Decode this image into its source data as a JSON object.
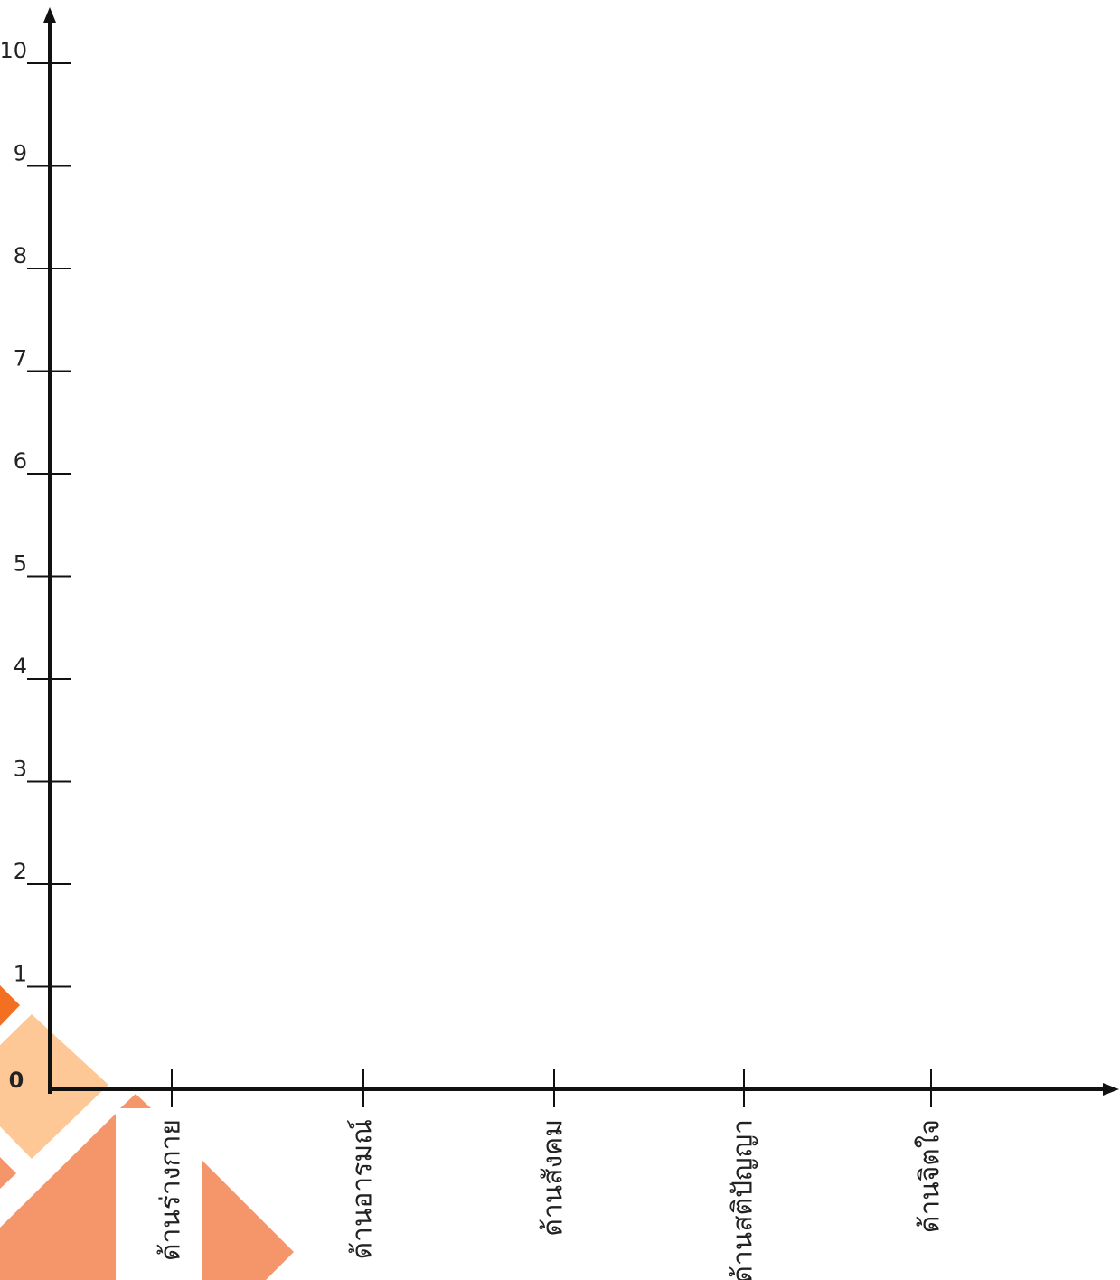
{
  "chart_data": {
    "type": "bar",
    "categories": [
      "ด้านร่างกาย",
      "ด้านอารมณ์",
      "ด้านสังคม",
      "ด้านสติปัญญา",
      "ด้านจิตใจ"
    ],
    "ylim": [
      0,
      10
    ],
    "yticks": [
      0,
      1,
      2,
      3,
      4,
      5,
      6,
      7,
      8,
      9,
      10
    ]
  }
}
